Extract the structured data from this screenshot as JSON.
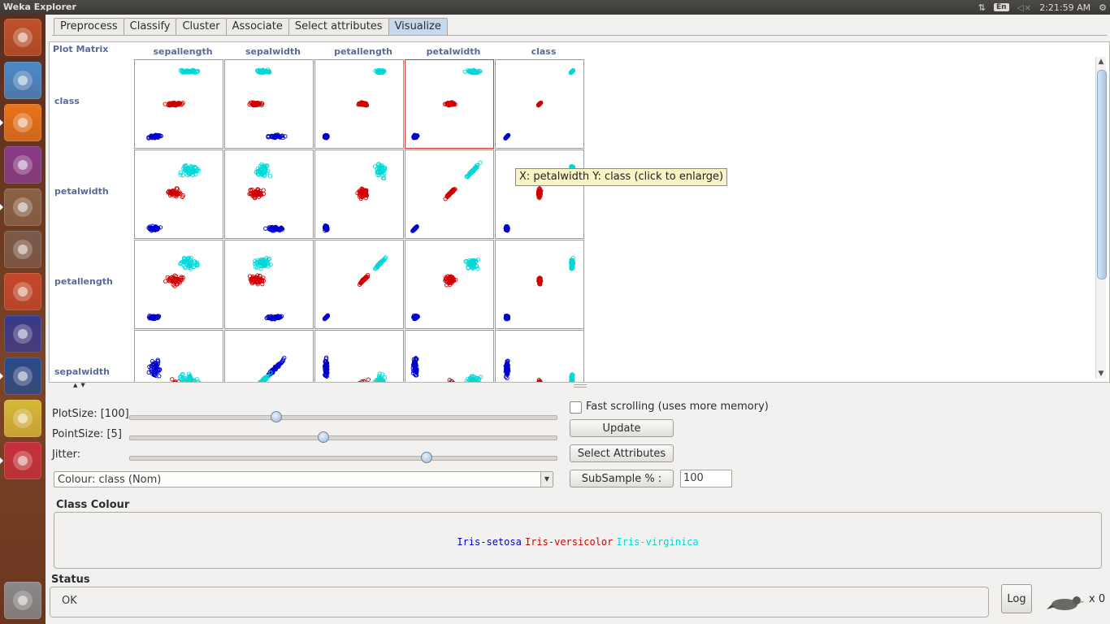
{
  "system": {
    "window_title": "Weka Explorer",
    "keyboard_layout": "En",
    "clock": "2:21:59 AM"
  },
  "launcher": {
    "apps": [
      {
        "name": "ubuntu-dash-icon",
        "color": "#c0502a"
      },
      {
        "name": "chromium-icon",
        "color": "#4a89c8"
      },
      {
        "name": "firefox-icon",
        "color": "#e8731a"
      },
      {
        "name": "app-window-icon",
        "color": "#8a3a8a"
      },
      {
        "name": "file-manager-icon",
        "color": "#8a6248"
      },
      {
        "name": "system-settings-icon",
        "color": "#7d5a48"
      },
      {
        "name": "impress-icon",
        "color": "#c7462a"
      },
      {
        "name": "anaconda-navigator-icon",
        "color": "#3a3a8a"
      },
      {
        "name": "weka-bird-icon",
        "color": "#2a4a8a"
      },
      {
        "name": "geometry-app-icon",
        "color": "#d8b838"
      },
      {
        "name": "pdf-reader-icon",
        "color": "#c7303a"
      },
      {
        "name": "trash-icon",
        "color": "#8a8a8a"
      }
    ]
  },
  "tabs": [
    {
      "label": "Preprocess",
      "active": false
    },
    {
      "label": "Classify",
      "active": false
    },
    {
      "label": "Cluster",
      "active": false
    },
    {
      "label": "Associate",
      "active": false
    },
    {
      "label": "Select attributes",
      "active": false
    },
    {
      "label": "Visualize",
      "active": true
    }
  ],
  "matrix": {
    "title": "Plot Matrix",
    "columns": [
      "sepallength",
      "sepalwidth",
      "petallength",
      "petalwidth",
      "class"
    ],
    "rows": [
      "class",
      "petalwidth",
      "petallength",
      "sepalwidth"
    ],
    "selected_cell": {
      "x": "petalwidth",
      "y": "class"
    },
    "tooltip": "X: petalwidth Y: class (click to enlarge)"
  },
  "controls": {
    "plot_size_label": "PlotSize: [100]",
    "plot_size_value": 100,
    "plot_size_fraction": 0.34,
    "point_size_label": "PointSize: [5]",
    "point_size_value": 5,
    "point_size_fraction": 0.45,
    "jitter_label": "Jitter:",
    "jitter_fraction": 0.69,
    "colour_select": "Colour: class  (Nom)",
    "fast_scrolling_label": "Fast scrolling (uses more memory)",
    "fast_scrolling_checked": false,
    "update_button": "Update",
    "select_attributes_button": "Select Attributes",
    "subsample_button": "SubSample % :",
    "subsample_value": "100"
  },
  "class_colour": {
    "title": "Class Colour",
    "classes": [
      {
        "label": "Iris-setosa",
        "color": "#0000cc"
      },
      {
        "label": "Iris-versicolor",
        "color": "#d00000"
      },
      {
        "label": "Iris-virginica",
        "color": "#00d8d8"
      }
    ]
  },
  "status": {
    "title": "Status",
    "text": "OK",
    "log_button": "Log",
    "task_count": "x 0"
  }
}
